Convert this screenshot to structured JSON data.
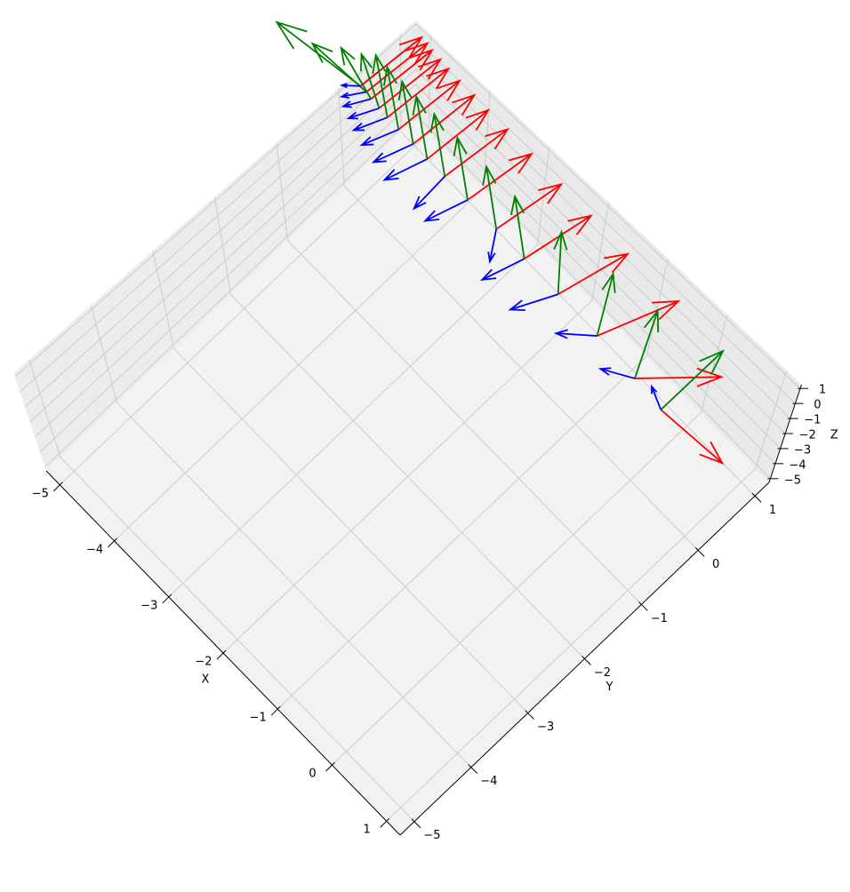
{
  "chart_data": {
    "type": "quiver3d",
    "xlabel": "X",
    "ylabel": "Y",
    "zlabel": "Z",
    "xlim": [
      -5.25,
      1.25
    ],
    "ylim": [
      -5.25,
      1.25
    ],
    "zlim": [
      -5.25,
      1.25
    ],
    "xticks": [
      {
        "value": -5,
        "label": "−5"
      },
      {
        "value": -4,
        "label": "−4"
      },
      {
        "value": -3,
        "label": "−3"
      },
      {
        "value": -2,
        "label": "−2"
      },
      {
        "value": -1,
        "label": "−1"
      },
      0,
      1
    ],
    "yticks": [
      {
        "value": -5,
        "label": "−5"
      },
      {
        "value": -4,
        "label": "−4"
      },
      {
        "value": -3,
        "label": "−3"
      },
      {
        "value": -2,
        "label": "−2"
      },
      {
        "value": -1,
        "label": "−1"
      },
      0,
      1
    ],
    "zticks": [
      {
        "value": -5,
        "label": "−5"
      },
      {
        "value": -4,
        "label": "−4"
      },
      {
        "value": -3,
        "label": "−3"
      },
      {
        "value": -2,
        "label": "−2"
      },
      {
        "value": -1,
        "label": "−1"
      },
      0,
      1
    ],
    "grid": true,
    "origins": [
      [
        -5.2,
        0.3,
        0.5
      ],
      [
        -5.1,
        0.3,
        0.48
      ],
      [
        -5.0,
        0.28,
        0.46
      ],
      [
        -4.85,
        0.27,
        0.44
      ],
      [
        -4.7,
        0.26,
        0.42
      ],
      [
        -4.5,
        0.25,
        0.4
      ],
      [
        -4.25,
        0.25,
        0.37
      ],
      [
        -4.0,
        0.24,
        0.34
      ],
      [
        -3.7,
        0.24,
        0.3
      ],
      [
        -3.3,
        0.23,
        0.26
      ],
      [
        -2.8,
        0.22,
        0.22
      ],
      [
        -2.3,
        0.2,
        0.18
      ],
      [
        -1.7,
        0.18,
        0.13
      ],
      [
        -1.0,
        0.15,
        0.08
      ],
      [
        -0.3,
        0.1,
        0.04
      ],
      [
        0.2,
        0.05,
        0
      ]
    ],
    "series": [
      {
        "color": "#ff0000",
        "vectors": [
          [
            0.05,
            0.95,
            0
          ],
          [
            0.05,
            0.95,
            0
          ],
          [
            0.05,
            0.95,
            0
          ],
          [
            0.05,
            0.95,
            0
          ],
          [
            0.05,
            0.95,
            0
          ],
          [
            0.05,
            0.95,
            0
          ],
          [
            0.05,
            0.95,
            0
          ],
          [
            0.05,
            0.95,
            0
          ],
          [
            0.08,
            0.95,
            0
          ],
          [
            0.1,
            0.95,
            0
          ],
          [
            0.12,
            0.95,
            0
          ],
          [
            0.15,
            0.95,
            0
          ],
          [
            0.2,
            0.95,
            0
          ],
          [
            0.35,
            1.0,
            0
          ],
          [
            0.7,
            0.75,
            0
          ],
          [
            1.0,
            0.05,
            0
          ]
        ]
      },
      {
        "color": "#008000",
        "vectors": [
          [
            -1.2,
            -0.2,
            0.5
          ],
          [
            -0.8,
            -0.1,
            0.6
          ],
          [
            -0.6,
            0.1,
            0.8
          ],
          [
            -0.5,
            0.2,
            1.0
          ],
          [
            -0.5,
            0.3,
            1.2
          ],
          [
            -0.5,
            0.3,
            1.2
          ],
          [
            -0.5,
            0.3,
            1.2
          ],
          [
            -0.5,
            0.3,
            1.2
          ],
          [
            -0.5,
            0.3,
            1.2
          ],
          [
            -0.5,
            0.3,
            1.2
          ],
          [
            -0.5,
            0.3,
            1.2
          ],
          [
            -0.5,
            0.3,
            1.2
          ],
          [
            -0.4,
            0.4,
            1.2
          ],
          [
            -0.3,
            0.5,
            1.2
          ],
          [
            -0.3,
            0.6,
            1.2
          ],
          [
            0,
            1.0,
            0.3
          ]
        ]
      },
      {
        "color": "#0000ff",
        "vectors": [
          [
            -0.1,
            -0.2,
            0.4
          ],
          [
            -0.1,
            -0.3,
            0.4
          ],
          [
            -0.1,
            -0.35,
            0.4
          ],
          [
            -0.1,
            -0.4,
            0.4
          ],
          [
            -0.1,
            -0.45,
            0.4
          ],
          [
            -0.1,
            -0.5,
            0.4
          ],
          [
            -0.1,
            -0.55,
            0.4
          ],
          [
            -0.1,
            -0.6,
            0.4
          ],
          [
            0.1,
            -0.6,
            0.4
          ],
          [
            -0.1,
            -0.6,
            0.4
          ],
          [
            0.3,
            -0.4,
            0.4
          ],
          [
            -0.1,
            -0.6,
            0.4
          ],
          [
            -0.2,
            -0.6,
            0.4
          ],
          [
            -0.3,
            -0.4,
            0.5
          ],
          [
            -0.3,
            -0.3,
            0.6
          ],
          [
            -0.2,
            0,
            0.8
          ]
        ]
      }
    ]
  }
}
